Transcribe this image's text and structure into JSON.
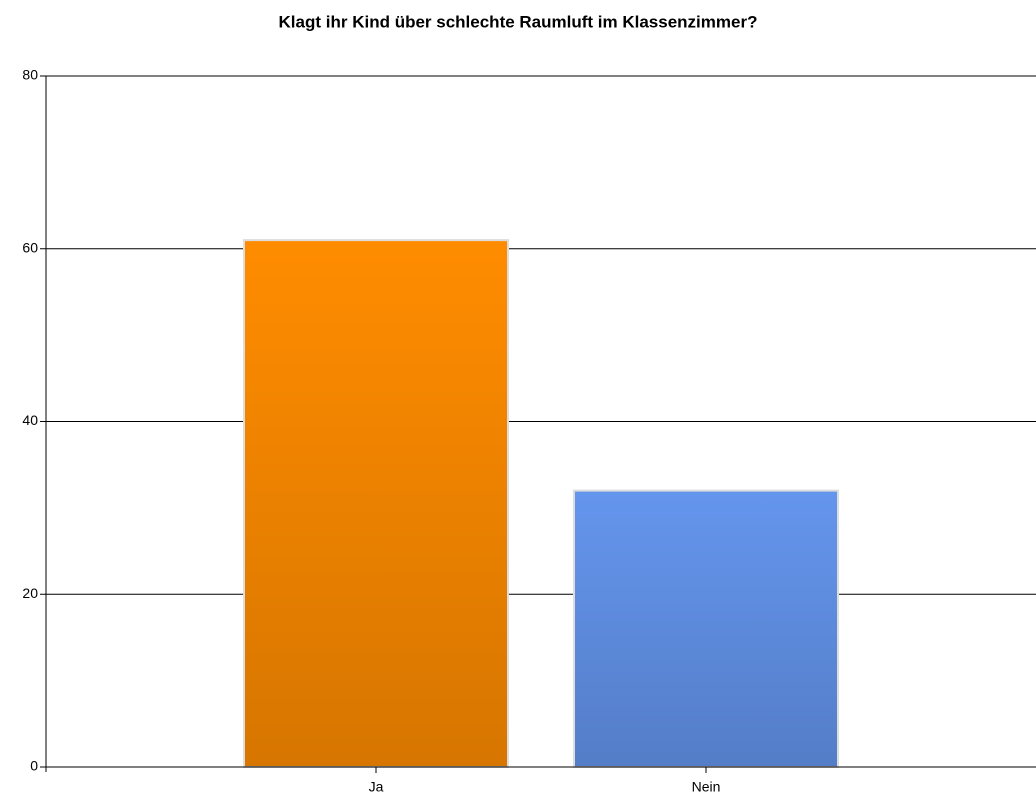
{
  "chart_data": {
    "type": "bar",
    "title": "Klagt ihr Kind über schlechte Raumluft im Klassenzimmer?",
    "categories": [
      "Ja",
      "Nein"
    ],
    "values": [
      61,
      32
    ],
    "colors": [
      "#ff8c00",
      "#6495ed"
    ],
    "ylim": [
      0,
      80
    ],
    "yticks": [
      0,
      20,
      40,
      60,
      80
    ],
    "grid": true
  }
}
